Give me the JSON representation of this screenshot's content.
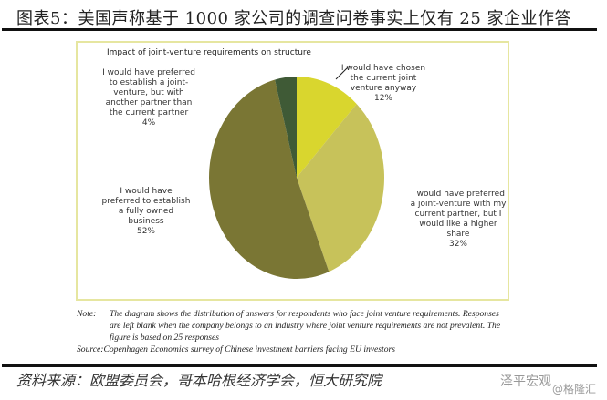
{
  "header": {
    "title": "图表5：美国声称基于 1000 家公司的调查问卷事实上仅有 25 家企业作答"
  },
  "chart_data": {
    "type": "pie",
    "title": "Impact of joint-venture requirements on structure",
    "slices": [
      {
        "label": "I would have chosen the current joint venture anyway",
        "value": 12,
        "value_label": "12%",
        "color": "#d9d62e"
      },
      {
        "label": "I would have preferred a joint-venture with my current partner, but I would like a higher share",
        "value": 32,
        "value_label": "32%",
        "color": "#c7c25a"
      },
      {
        "label": "I would have preferred to establish a fully owned business",
        "value": 52,
        "value_label": "52%",
        "color": "#7a7634"
      },
      {
        "label": "I would have preferred to establish a joint-venture, but with another partner than the current partner",
        "value": 4,
        "value_label": "4%",
        "color": "#3f5a36"
      }
    ],
    "start": "top",
    "direction": "clockwise"
  },
  "note": {
    "note_key": "Note:",
    "note_text": "The diagram shows the distribution of answers for respondents who face joint venture requirements. Responses are left blank when the company belongs to an industry where joint venture requirements are not prevalent. The figure is based on 25 responses",
    "source_key": "Source:",
    "source_text": "Copenhagen Economics survey of Chinese investment barriers facing EU investors"
  },
  "footer": {
    "source": "资料来源：欧盟委员会，哥本哈根经济学会，恒大研究院"
  },
  "watermarks": {
    "wechat": "泽平宏观",
    "site": "@格隆汇"
  }
}
